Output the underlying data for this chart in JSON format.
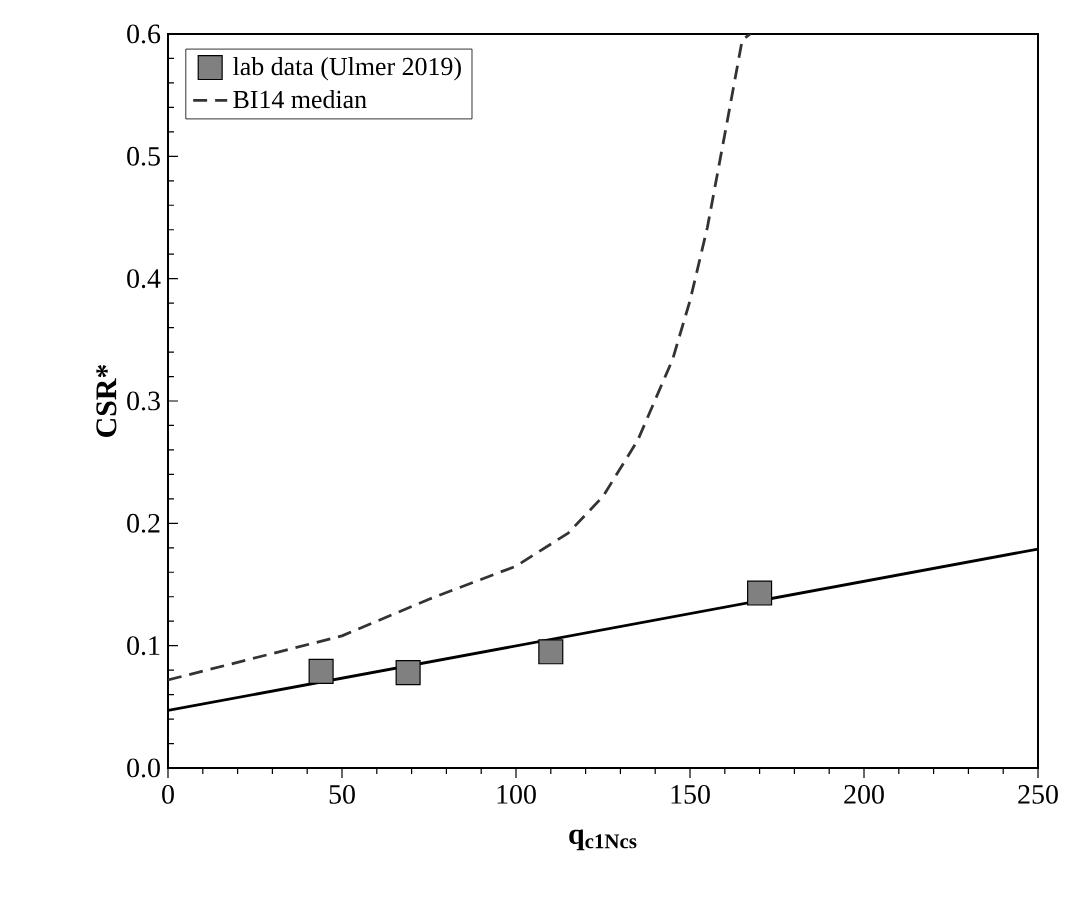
{
  "chart_data": {
    "type": "scatter",
    "xlabel": "q$_{c1Ncs}$",
    "ylabel": "CSR*",
    "xlim": [
      0,
      250
    ],
    "ylim": [
      0,
      0.6
    ],
    "xticks": [
      0,
      50,
      100,
      150,
      200,
      250
    ],
    "yticks": [
      {
        "value": 0,
        "label": "0.0"
      },
      0.1,
      0.2,
      0.3,
      0.4,
      0.5,
      0.6
    ],
    "legend": "top left",
    "grid": false,
    "series": [
      {
        "name": "lab data (Ulmer 2019)",
        "marker": "square",
        "color": "#808080",
        "x": [
          44,
          69,
          110,
          170
        ],
        "values": [
          0.079,
          0.078,
          0.095,
          0.143
        ]
      },
      {
        "type": "line",
        "line_style": "solid",
        "color": "#000000",
        "x": [
          0,
          250
        ],
        "values": [
          0.047,
          0.179
        ]
      },
      {
        "name": "BI14 median",
        "type": "line",
        "line_style": "dashed",
        "color": "#333333",
        "x": [
          0,
          50,
          75,
          100,
          115,
          125,
          135,
          145,
          150,
          155,
          160,
          165,
          167.3
        ],
        "values": [
          0.072,
          0.108,
          0.138,
          0.165,
          0.192,
          0.222,
          0.268,
          0.334,
          0.382,
          0.442,
          0.518,
          0.595,
          0.6
        ]
      }
    ]
  }
}
